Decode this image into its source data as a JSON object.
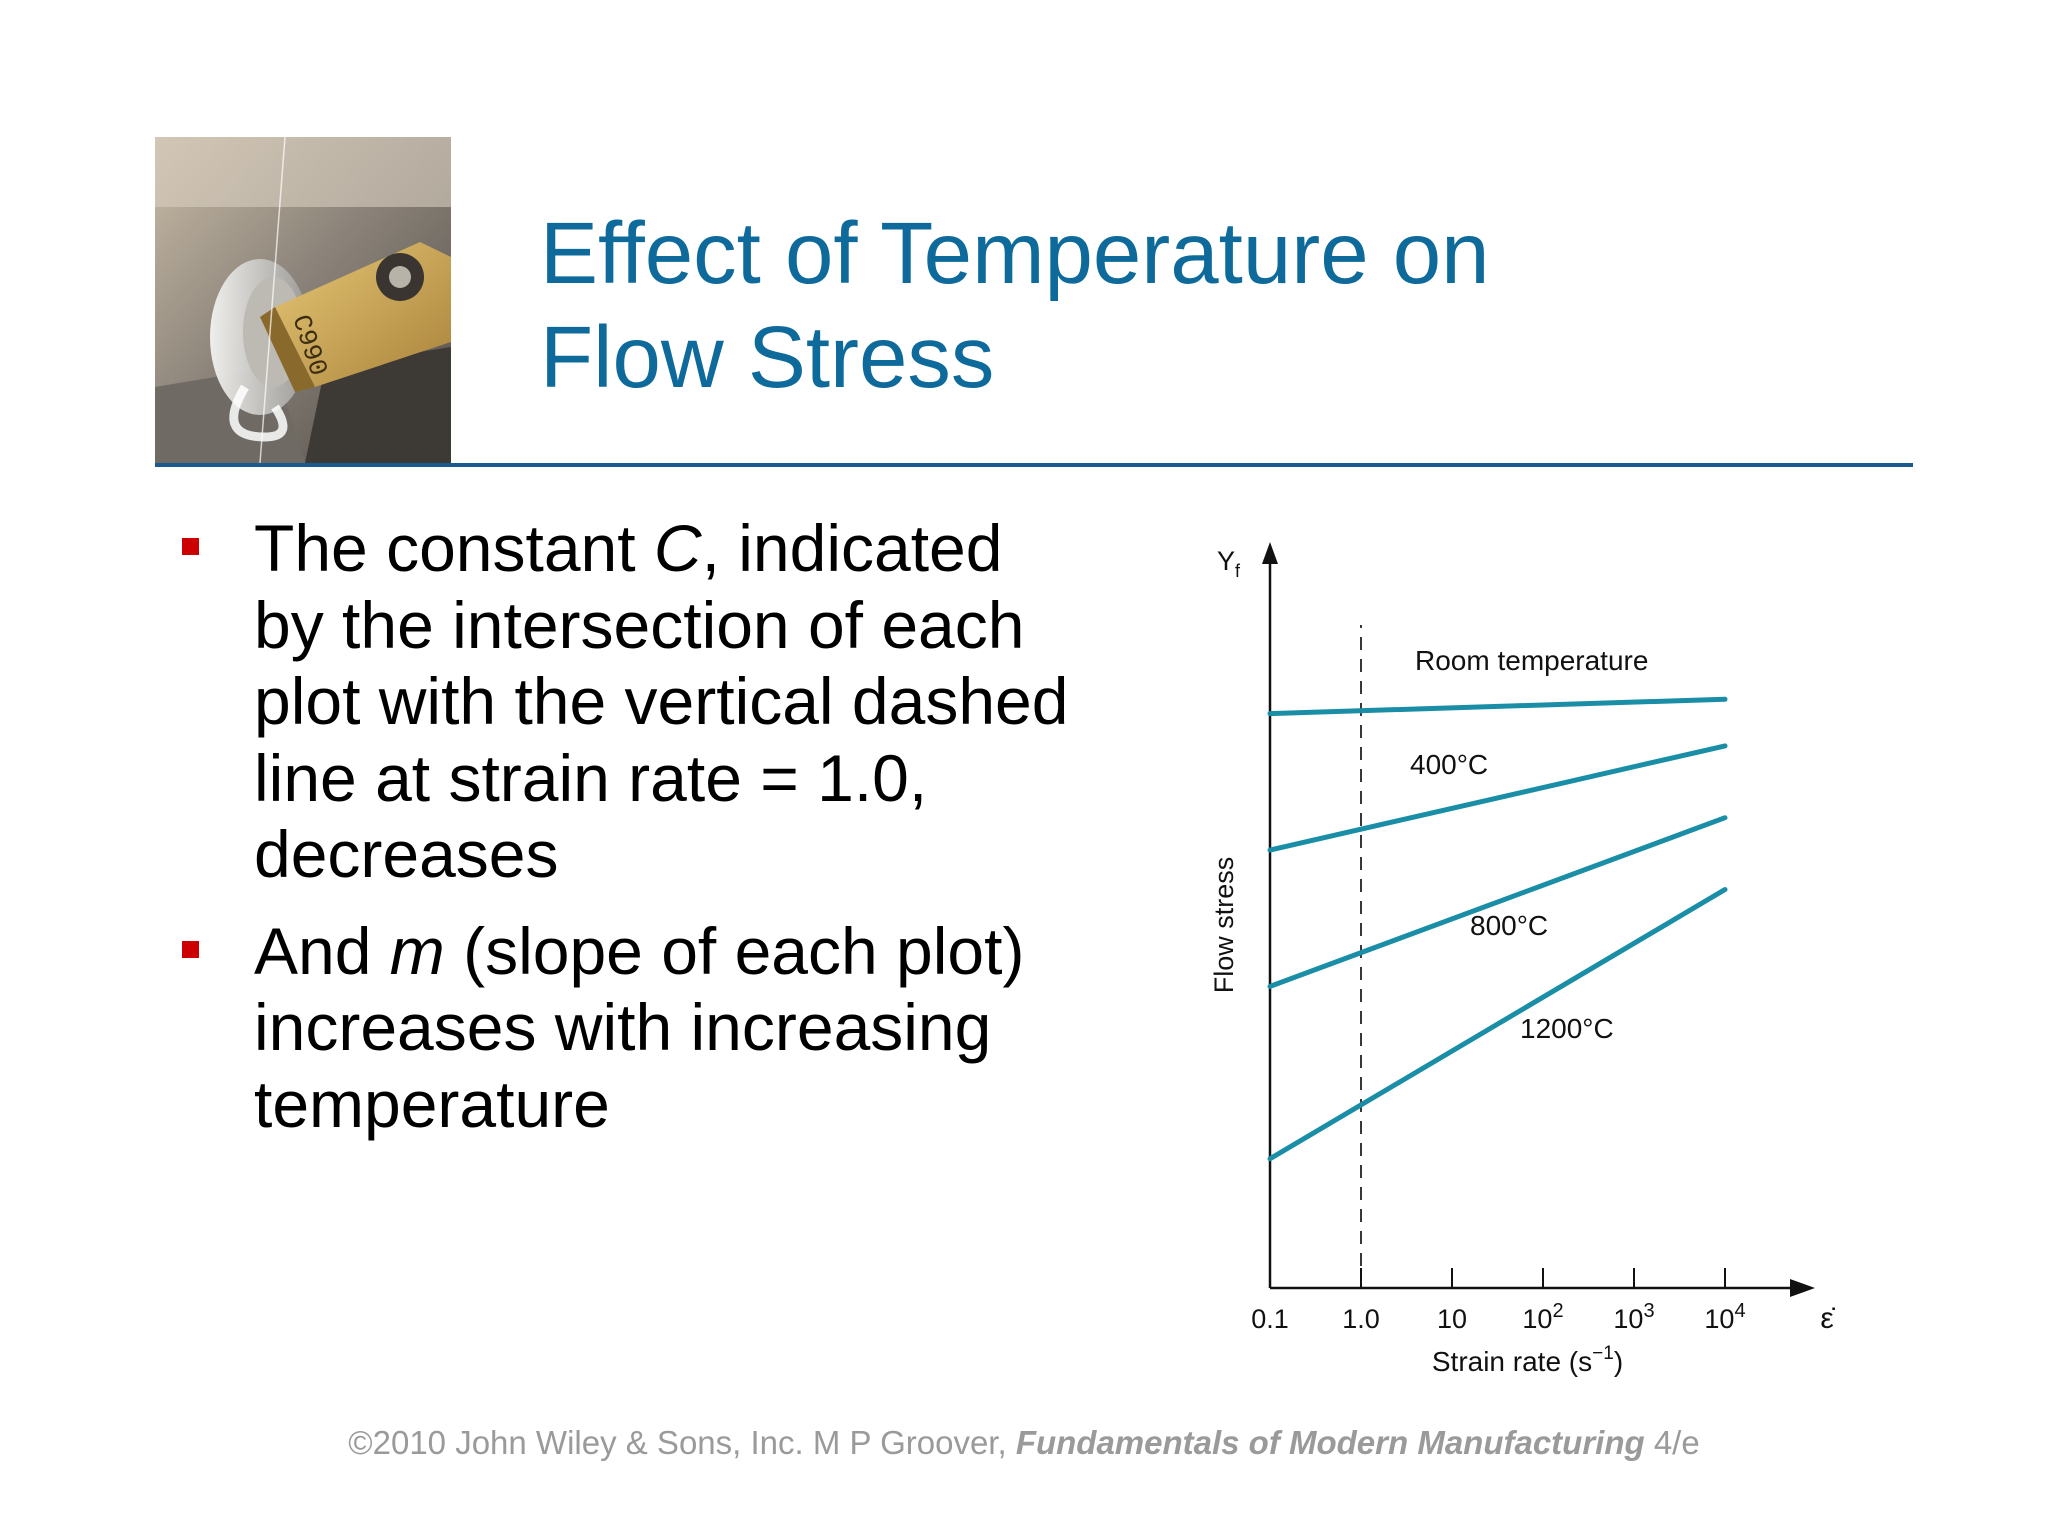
{
  "slide": {
    "title_lines": [
      "Effect of Temperature on",
      "Flow Stress"
    ],
    "photo": {
      "icon": "cutting-tool-photo",
      "engraved_text": "C990"
    },
    "bullets": [
      {
        "marker_color": "#cc0000",
        "lines": [
          [
            "The constant ",
            {
              "i": "C"
            },
            ", indicated"
          ],
          [
            "by the intersection of each"
          ],
          [
            "plot with the vertical dashed"
          ],
          [
            "line at strain rate = 1.0,"
          ],
          [
            "decreases"
          ]
        ]
      },
      {
        "marker_color": "#cc0000",
        "lines": [
          [
            "And ",
            {
              "i": "m"
            },
            " (slope of each plot)"
          ],
          [
            "increases with increasing"
          ],
          [
            "temperature"
          ]
        ]
      }
    ],
    "footer": {
      "prefix": "©2010 John Wiley & Sons, Inc.  M P Groover, ",
      "book": "Fundamentals of Modern Manufacturing",
      "suffix": " 4/e"
    },
    "colors": {
      "title": "#0f6a9c",
      "rule": "#1a5a8e",
      "series": "#1a8ea6",
      "footer": "#9a9a9a"
    }
  },
  "chart_data": {
    "type": "line",
    "xscale": "log",
    "x_ticks": [
      0.1,
      1,
      10,
      100,
      1000,
      10000
    ],
    "x_tick_labels": [
      {
        "base": "0.1"
      },
      {
        "base": "1.0"
      },
      {
        "base": "10"
      },
      {
        "base": "10",
        "sup": "2"
      },
      {
        "base": "10",
        "sup": "3"
      },
      {
        "base": "10",
        "sup": "4"
      }
    ],
    "xlim": [
      0.1,
      10000
    ],
    "ylim": [
      0,
      100
    ],
    "xlabel": "Strain rate (s",
    "xlabel_sup": "−1",
    "xlabel_close": ")",
    "x_axis_symbol": "ε̇",
    "y_axis_symbol": "Y",
    "y_axis_symbol_sub": "f",
    "ylabel": "Flow stress",
    "dashed_line_x": 1,
    "series": [
      {
        "name": "Room temperature",
        "x": [
          0.1,
          10000
        ],
        "y": [
          80,
          82
        ]
      },
      {
        "name": "400°C",
        "x": [
          0.1,
          10000
        ],
        "y": [
          61,
          75.5
        ]
      },
      {
        "name": "800°C",
        "x": [
          0.1,
          10000
        ],
        "y": [
          42,
          65.5
        ]
      },
      {
        "name": "1200°C",
        "x": [
          0.1,
          10000
        ],
        "y": [
          18,
          55.5
        ]
      }
    ]
  }
}
